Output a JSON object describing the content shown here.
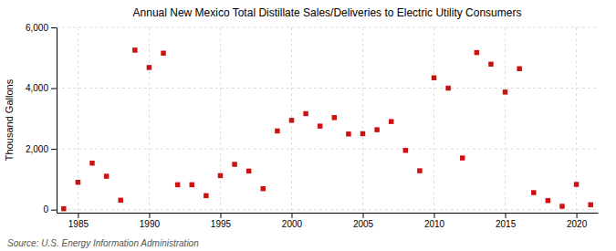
{
  "chart_data": {
    "type": "scatter",
    "title": "Annual New Mexico Total Distillate Sales/Deliveries to Electric Utility Consumers",
    "y_label": "Thousand Gallons",
    "annotations": [
      "Source: U.S. Energy Information Administration"
    ],
    "color": "#cc1111",
    "marker": "square",
    "grid": true,
    "xlim": [
      1983.5,
      2021.5
    ],
    "ylim": [
      -100,
      6000
    ],
    "xticks": [
      1985,
      1990,
      1995,
      2000,
      2005,
      2010,
      2015,
      2020
    ],
    "yticks": [
      0,
      {
        "value": 2000,
        "label": "2,000"
      },
      {
        "value": 4000,
        "label": "4,000"
      },
      {
        "value": 6000,
        "label": "6,000"
      }
    ],
    "x": [
      1984,
      1985,
      1986,
      1987,
      1988,
      1989,
      1990,
      1991,
      1992,
      1993,
      1994,
      1995,
      1996,
      1997,
      1998,
      1999,
      2000,
      2001,
      2002,
      2003,
      2004,
      2005,
      2006,
      2007,
      2008,
      2009,
      2010,
      2011,
      2012,
      2013,
      2014,
      2015,
      2016,
      2017,
      2018,
      2019,
      2020,
      2021
    ],
    "values": [
      30,
      900,
      1530,
      1100,
      310,
      5250,
      4680,
      5150,
      820,
      820,
      460,
      1120,
      1490,
      1270,
      690,
      2590,
      2940,
      3160,
      2750,
      3030,
      2490,
      2500,
      2630,
      2900,
      1950,
      1280,
      4340,
      4000,
      1700,
      5170,
      4790,
      3870,
      4640,
      560,
      300,
      110,
      830,
      160
    ]
  }
}
